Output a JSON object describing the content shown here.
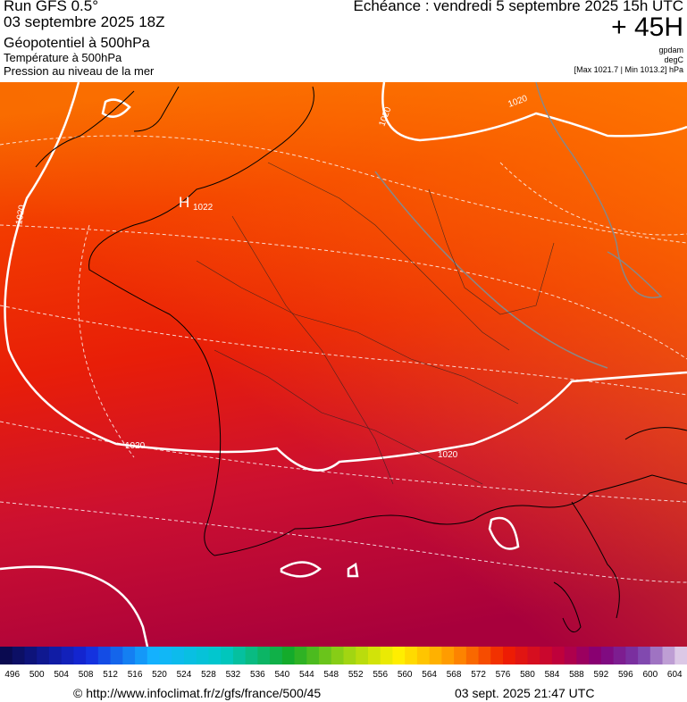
{
  "header": {
    "run": "Run GFS 0.5°",
    "date": "03 septembre 2025 18Z",
    "fields": [
      "Géopotentiel à 500hPa",
      "Température à 500hPa",
      "Pression au niveau de la mer"
    ],
    "echeance": "Echéance : vendredi 5 septembre 2025 15h UTC",
    "lead": "+ 45H",
    "units": [
      "gpdam",
      "degC",
      "[Max 1021.7 | Min 1013.2] hPa"
    ]
  },
  "map": {
    "high": {
      "symbol": "H",
      "value": "1022"
    },
    "isobar_labels": [
      "1020",
      "1020",
      "1020",
      "1020",
      "1020"
    ]
  },
  "legend": {
    "labels": [
      496,
      500,
      504,
      508,
      512,
      516,
      520,
      524,
      528,
      532,
      536,
      540,
      544,
      548,
      552,
      556,
      560,
      564,
      568,
      572,
      576,
      580,
      584,
      588,
      592,
      596,
      600,
      604
    ]
  },
  "footer": {
    "url": "© http://www.infoclimat.fr/z/gfs/france/500/45",
    "time": "03 sept. 2025 21:47 UTC"
  }
}
